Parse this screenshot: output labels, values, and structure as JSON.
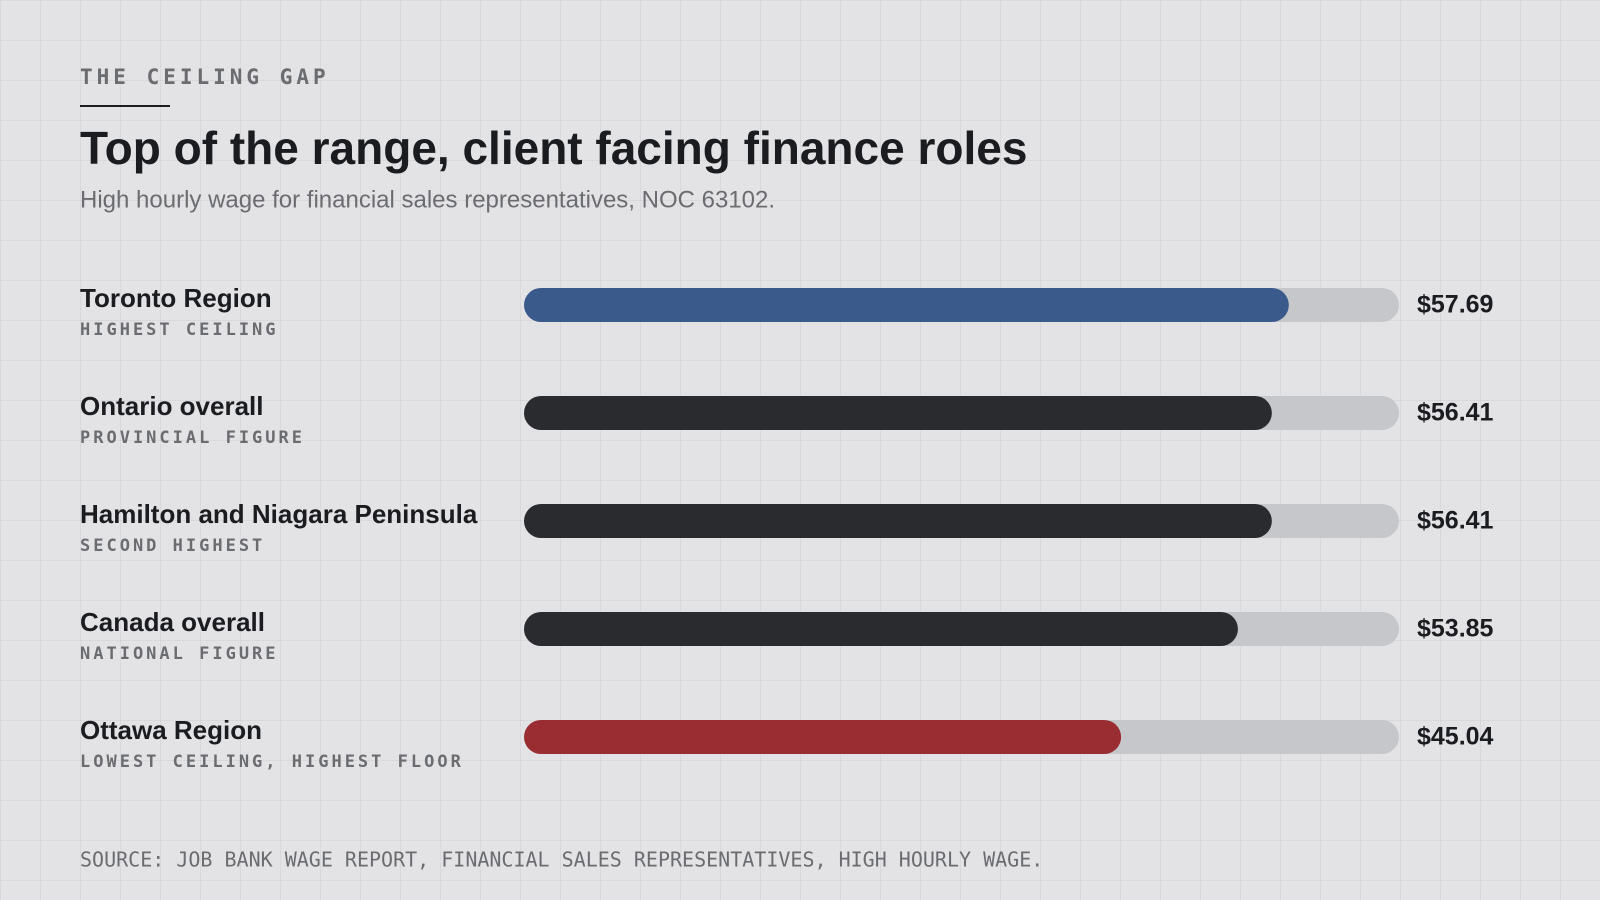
{
  "chart_data": {
    "type": "bar",
    "orientation": "horizontal",
    "eyebrow": "THE CEILING GAP",
    "title": "Top of the range, client facing finance roles",
    "subtitle": "High hourly wage for financial sales representatives, NOC 63102.",
    "categories": [
      "Toronto Region",
      "Ontario overall",
      "Hamilton and Niagara Peninsula",
      "Canada overall",
      "Ottawa Region"
    ],
    "notes": [
      "HIGHEST CEILING",
      "PROVINCIAL FIGURE",
      "SECOND HIGHEST",
      "NATIONAL FIGURE",
      "LOWEST CEILING, HIGHEST FLOOR"
    ],
    "values": [
      57.69,
      56.41,
      56.41,
      53.85,
      45.04
    ],
    "value_labels": [
      "$57.69",
      "$56.41",
      "$56.41",
      "$53.85",
      "$45.04"
    ],
    "colors": [
      "#3a5a8c",
      "#2a2b2f",
      "#2a2b2f",
      "#2a2b2f",
      "#9a2d31"
    ],
    "track_color": "#c6c7cb",
    "xlim": [
      0,
      66
    ],
    "source": "SOURCE: JOB BANK WAGE REPORT, FINANCIAL SALES REPRESENTATIVES, HIGH HOURLY WAGE."
  }
}
